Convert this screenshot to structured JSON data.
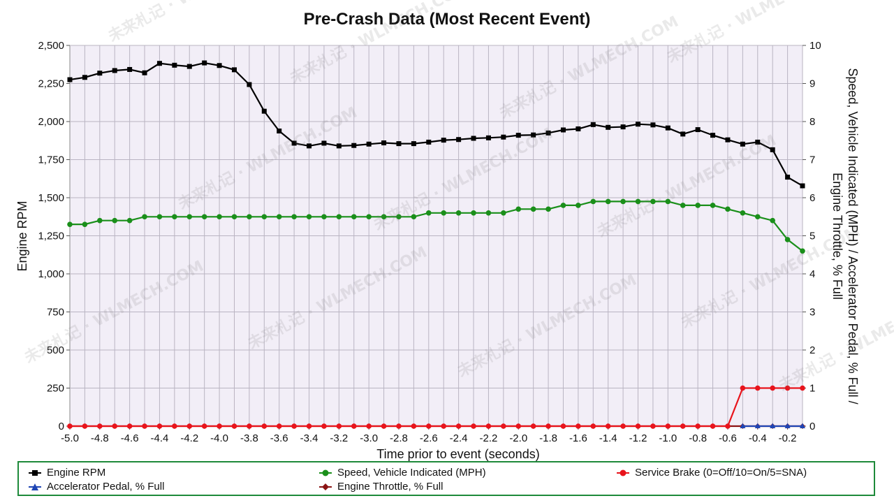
{
  "chart_data": {
    "type": "line",
    "title": "Pre-Crash Data (Most Recent Event)",
    "xlabel": "Time prior to event (seconds)",
    "ylabel": "Engine RPM",
    "y2label_line1": "Speed, Vehicle Indicated (MPH) / Accelerator Pedal, % Full /",
    "y2label_line2": "Engine Throttle, % Full",
    "xlim": [
      -5.0,
      -0.1
    ],
    "ylim": [
      0,
      2500
    ],
    "y2lim": [
      0,
      10
    ],
    "x_ticks": [
      -5.0,
      -4.8,
      -4.6,
      -4.4,
      -4.2,
      -4.0,
      -3.8,
      -3.6,
      -3.4,
      -3.2,
      -3.0,
      -2.8,
      -2.6,
      -2.4,
      -2.2,
      -2.0,
      -1.8,
      -1.6,
      -1.4,
      -1.2,
      -1.0,
      -0.8,
      -0.6,
      -0.4,
      -0.2
    ],
    "x_tick_labels": [
      "-5.0",
      "-4.8",
      "-4.6",
      "-4.4",
      "-4.2",
      "-4.0",
      "-3.8",
      "-3.6",
      "-3.4",
      "-3.2",
      "-3.0",
      "-2.8",
      "-2.6",
      "-2.4",
      "-2.2",
      "-2.0",
      "-1.8",
      "-1.6",
      "-1.4",
      "-1.2",
      "-1.0",
      "-0.8",
      "-0.6",
      "-0.4",
      "-0.2"
    ],
    "y_ticks": [
      0,
      250,
      500,
      750,
      1000,
      1250,
      1500,
      1750,
      2000,
      2250,
      2500
    ],
    "y_tick_labels": [
      "0",
      "250",
      "500",
      "750",
      "1,000",
      "1,250",
      "1,500",
      "1,750",
      "2,000",
      "2,250",
      "2,500"
    ],
    "y2_ticks": [
      0,
      1,
      2,
      3,
      4,
      5,
      6,
      7,
      8,
      9,
      10
    ],
    "y2_tick_labels": [
      "0",
      "1",
      "2",
      "3",
      "4",
      "5",
      "6",
      "7",
      "8",
      "9",
      "10"
    ],
    "grid": true,
    "legend_position": "bottom",
    "x": [
      -5.0,
      -4.9,
      -4.8,
      -4.7,
      -4.6,
      -4.5,
      -4.4,
      -4.3,
      -4.2,
      -4.1,
      -4.0,
      -3.9,
      -3.8,
      -3.7,
      -3.6,
      -3.5,
      -3.4,
      -3.3,
      -3.2,
      -3.1,
      -3.0,
      -2.9,
      -2.8,
      -2.7,
      -2.6,
      -2.5,
      -2.4,
      -2.3,
      -2.2,
      -2.1,
      -2.0,
      -1.9,
      -1.8,
      -1.7,
      -1.6,
      -1.5,
      -1.4,
      -1.3,
      -1.2,
      -1.1,
      -1.0,
      -0.9,
      -0.8,
      -0.7,
      -0.6,
      -0.5,
      -0.4,
      -0.3,
      -0.2,
      -0.1
    ],
    "series": [
      {
        "name": "Engine RPM",
        "axis": "left",
        "color": "#000000",
        "marker": "square",
        "values": [
          2275,
          2290,
          2318,
          2335,
          2342,
          2320,
          2382,
          2370,
          2362,
          2385,
          2368,
          2340,
          2243,
          2068,
          1938,
          1858,
          1840,
          1858,
          1840,
          1843,
          1852,
          1860,
          1855,
          1855,
          1865,
          1878,
          1882,
          1890,
          1893,
          1898,
          1910,
          1912,
          1925,
          1945,
          1952,
          1980,
          1962,
          1965,
          1983,
          1978,
          1958,
          1918,
          1947,
          1910,
          1880,
          1852,
          1865,
          1815,
          1635,
          1578
        ]
      },
      {
        "name": "Speed, Vehicle Indicated (MPH)",
        "axis": "right",
        "color": "#1a8f1a",
        "marker": "circle",
        "values": [
          5.3,
          5.3,
          5.4,
          5.4,
          5.4,
          5.5,
          5.5,
          5.5,
          5.5,
          5.5,
          5.5,
          5.5,
          5.5,
          5.5,
          5.5,
          5.5,
          5.5,
          5.5,
          5.5,
          5.5,
          5.5,
          5.5,
          5.5,
          5.5,
          5.6,
          5.6,
          5.6,
          5.6,
          5.6,
          5.6,
          5.7,
          5.7,
          5.7,
          5.8,
          5.8,
          5.9,
          5.9,
          5.9,
          5.9,
          5.9,
          5.9,
          5.8,
          5.8,
          5.8,
          5.7,
          5.6,
          5.5,
          5.4,
          4.9,
          4.6
        ]
      },
      {
        "name": "Service Brake (0=Off/10=On/5=SNA)",
        "axis": "right",
        "color": "#e8141c",
        "marker": "circle",
        "values": [
          0,
          0,
          0,
          0,
          0,
          0,
          0,
          0,
          0,
          0,
          0,
          0,
          0,
          0,
          0,
          0,
          0,
          0,
          0,
          0,
          0,
          0,
          0,
          0,
          0,
          0,
          0,
          0,
          0,
          0,
          0,
          0,
          0,
          0,
          0,
          0,
          0,
          0,
          0,
          0,
          0,
          0,
          0,
          0,
          0,
          1,
          1,
          1,
          1,
          1
        ]
      },
      {
        "name": "Accelerator Pedal, % Full",
        "axis": "right",
        "color": "#1f45b4",
        "marker": "triangle",
        "values": [
          0,
          0,
          0,
          0,
          0,
          0,
          0,
          0,
          0,
          0,
          0,
          0,
          0,
          0,
          0,
          0,
          0,
          0,
          0,
          0,
          0,
          0,
          0,
          0,
          0,
          0,
          0,
          0,
          0,
          0,
          0,
          0,
          0,
          0,
          0,
          0,
          0,
          0,
          0,
          0,
          0,
          0,
          0,
          0,
          0,
          0,
          0,
          0,
          0,
          0
        ]
      },
      {
        "name": "Engine Throttle, % Full",
        "axis": "right",
        "color": "#8b1414",
        "marker": "diamond",
        "values": [
          0,
          0,
          0,
          0,
          0,
          0,
          0,
          0,
          0,
          0,
          0,
          0,
          0,
          0,
          0,
          0,
          0,
          0,
          0,
          0,
          0,
          0,
          0,
          0,
          0,
          0,
          0,
          0,
          0,
          0,
          0,
          0,
          0,
          0,
          0,
          0,
          0,
          0,
          0,
          0,
          0,
          0,
          0,
          0,
          0,
          0,
          0,
          0,
          0,
          0
        ]
      }
    ]
  },
  "watermark_text": "未来札记 · WLMECH.COM"
}
